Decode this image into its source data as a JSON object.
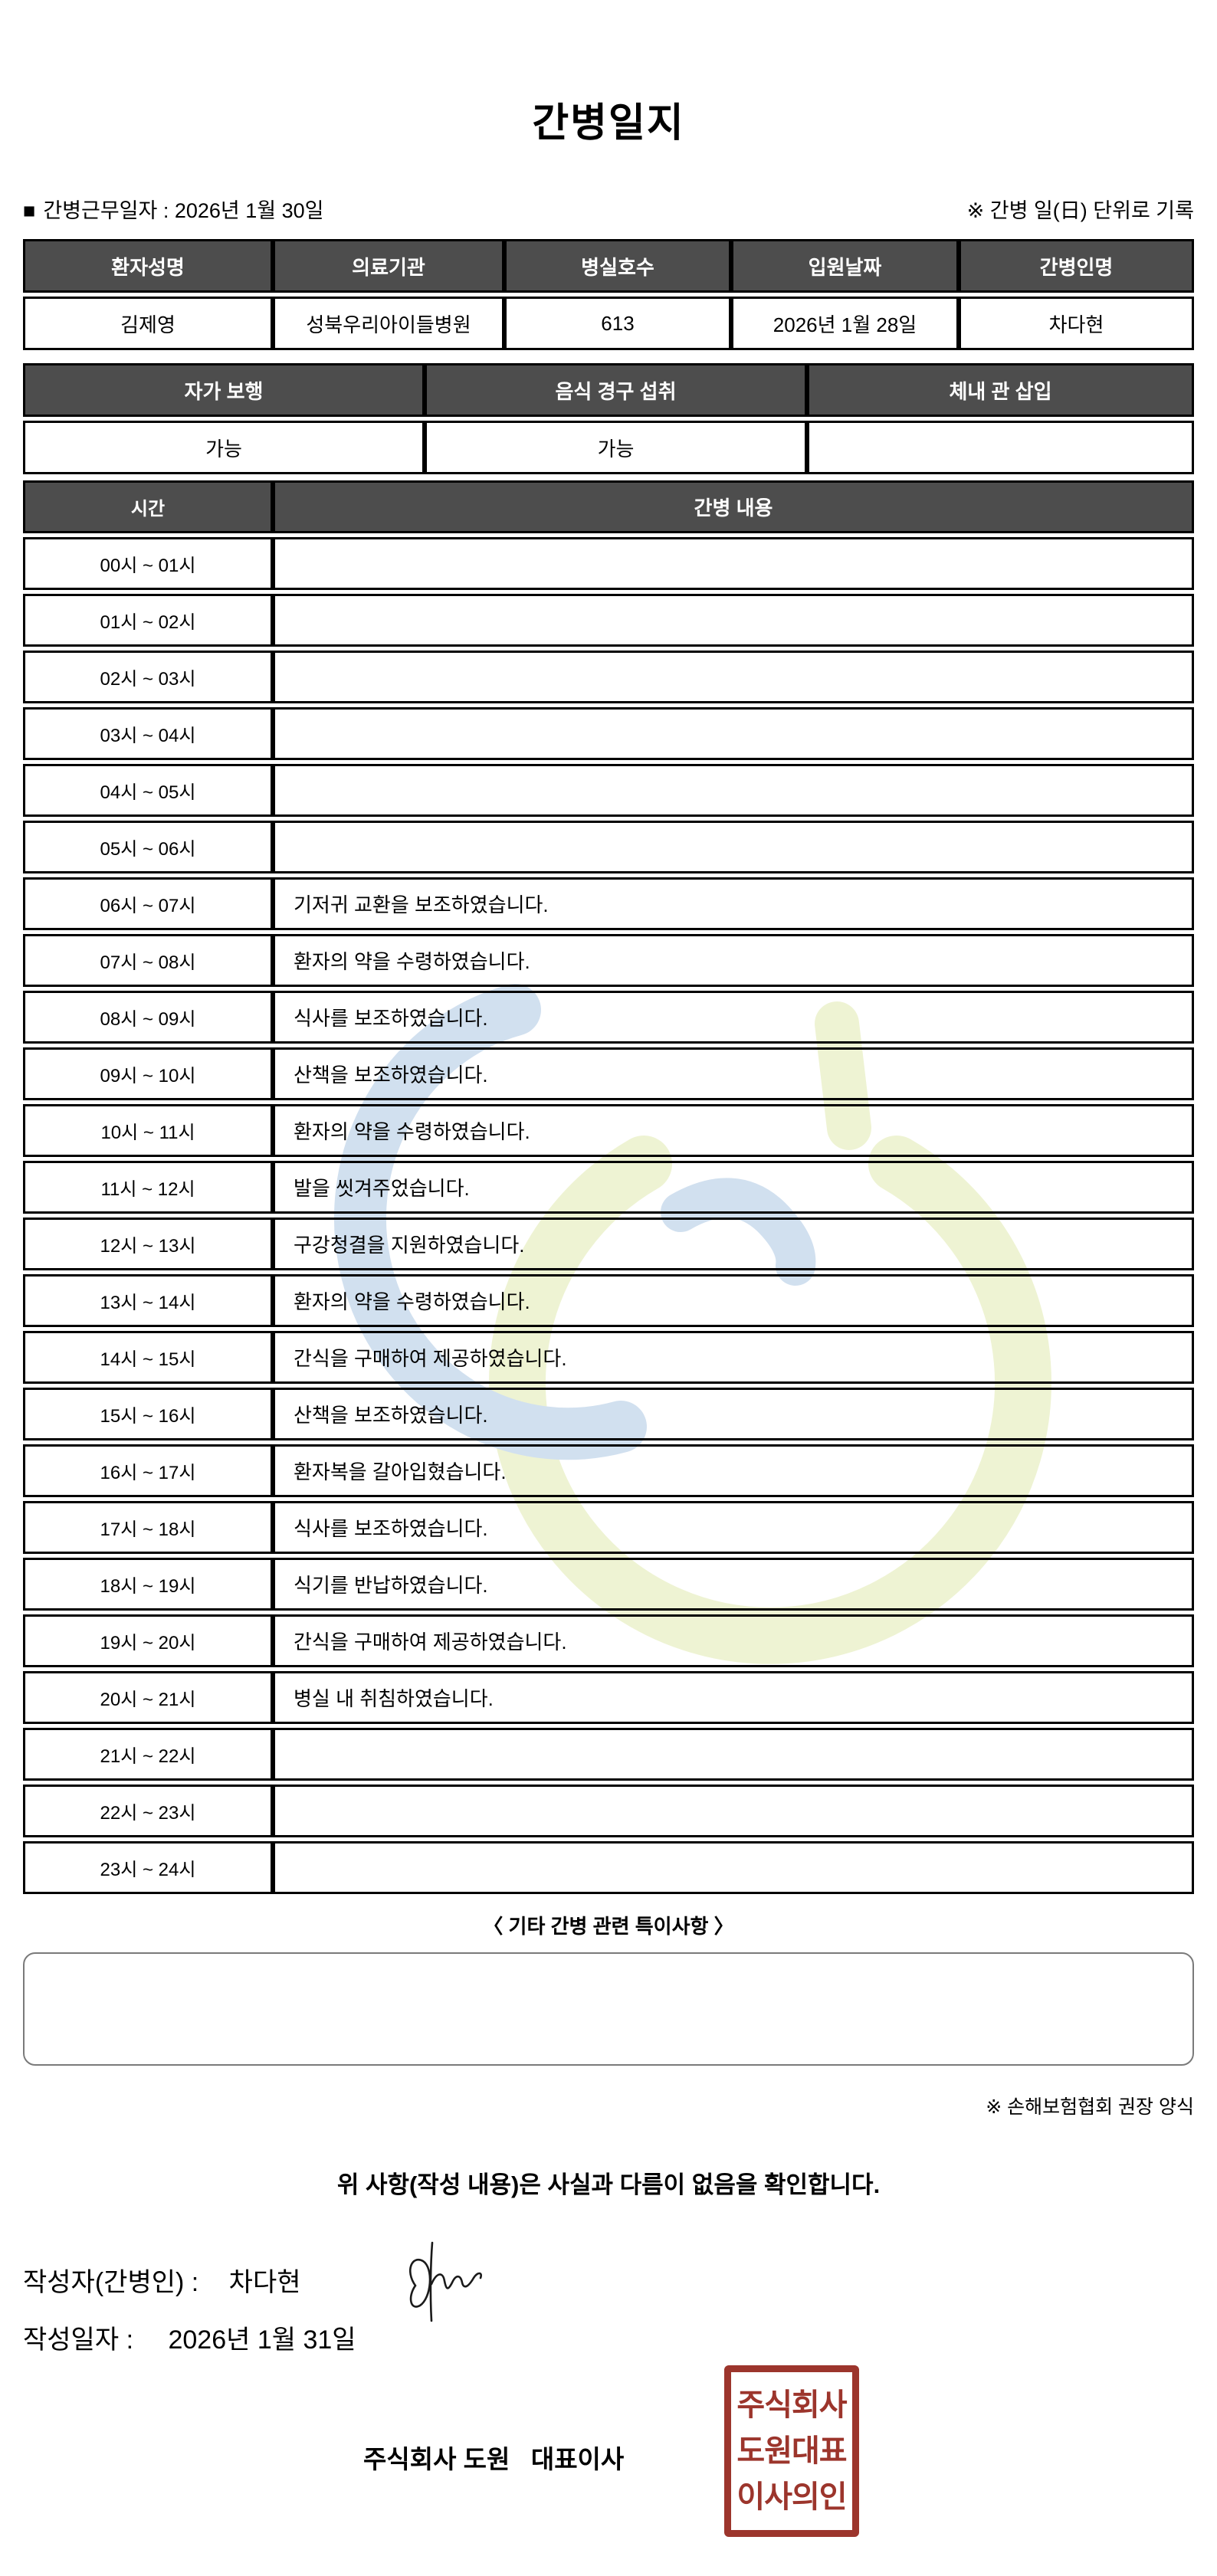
{
  "title": "간병일지",
  "meta": {
    "bullet": "■",
    "work_date_note": "간병근무일자 :  2026년 1월 30일",
    "unit_note": "※ 간병 일(日) 단위로 기록"
  },
  "patient_table": {
    "headers": [
      "환자성명",
      "의료기관",
      "병실호수",
      "입원날짜",
      "간병인명"
    ],
    "values": [
      "김제영",
      "성북우리아이들병원",
      "613",
      "2026년 1월 28일",
      "차다현"
    ]
  },
  "condition_table": {
    "headers": [
      "자가 보행",
      "음식 경구 섭취",
      "체내 관 삽입"
    ],
    "values": [
      "가능",
      "가능",
      ""
    ]
  },
  "log_table": {
    "time_header": "시간",
    "content_header": "간병 내용",
    "rows": [
      {
        "time": "00시 ~ 01시",
        "content": ""
      },
      {
        "time": "01시 ~ 02시",
        "content": ""
      },
      {
        "time": "02시 ~ 03시",
        "content": ""
      },
      {
        "time": "03시 ~ 04시",
        "content": ""
      },
      {
        "time": "04시 ~ 05시",
        "content": ""
      },
      {
        "time": "05시 ~ 06시",
        "content": ""
      },
      {
        "time": "06시 ~ 07시",
        "content": "기저귀 교환을 보조하였습니다."
      },
      {
        "time": "07시 ~ 08시",
        "content": "환자의 약을 수령하였습니다."
      },
      {
        "time": "08시 ~ 09시",
        "content": "식사를 보조하였습니다."
      },
      {
        "time": "09시 ~ 10시",
        "content": "산책을 보조하였습니다."
      },
      {
        "time": "10시 ~ 11시",
        "content": "환자의 약을 수령하였습니다."
      },
      {
        "time": "11시 ~ 12시",
        "content": "발을 씻겨주었습니다."
      },
      {
        "time": "12시 ~ 13시",
        "content": "구강청결을 지원하였습니다."
      },
      {
        "time": "13시 ~ 14시",
        "content": "환자의 약을 수령하였습니다."
      },
      {
        "time": "14시 ~ 15시",
        "content": "간식을 구매하여 제공하였습니다."
      },
      {
        "time": "15시 ~ 16시",
        "content": "산책을 보조하였습니다."
      },
      {
        "time": "16시 ~ 17시",
        "content": "환자복을 갈아입혔습니다."
      },
      {
        "time": "17시 ~ 18시",
        "content": "식사를 보조하였습니다."
      },
      {
        "time": "18시 ~ 19시",
        "content": "식기를 반납하였습니다."
      },
      {
        "time": "19시 ~ 20시",
        "content": "간식을 구매하여 제공하였습니다."
      },
      {
        "time": "20시 ~ 21시",
        "content": "병실 내 취침하였습니다."
      },
      {
        "time": "21시 ~ 22시",
        "content": ""
      },
      {
        "time": "22시 ~ 23시",
        "content": ""
      },
      {
        "time": "23시 ~ 24시",
        "content": ""
      }
    ]
  },
  "notes": {
    "title": "〈 기타 간병 관련 특이사항 〉",
    "content": "",
    "form_note": "※ 손해보험협회 권장 양식"
  },
  "footer": {
    "confirmation": "위 사항(작성 내용)은 사실과 다름이 없음을 확인합니다.",
    "writer_label": "작성자(간병인) :",
    "writer_name": "차다현",
    "date_label": "작성일자 :",
    "date_value": "2026년 1월 31일",
    "company_line": "주식회사 도원   대표이사",
    "stamp_lines": [
      "주식회사",
      "도원대표",
      "이사의인"
    ]
  },
  "colors": {
    "header_bg": "#4d4d4d",
    "stamp_red": "#9c352c",
    "watermark_blue": "#cdddee",
    "watermark_yellow": "#edf2cf"
  }
}
